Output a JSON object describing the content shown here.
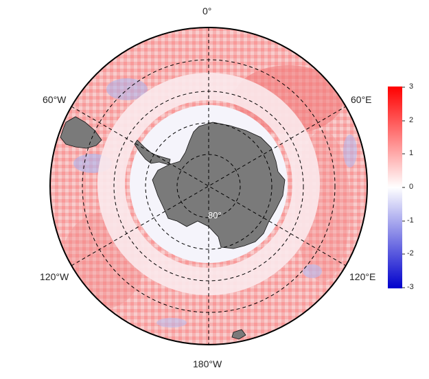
{
  "map": {
    "projection": "south-polar-stereographic",
    "land_color": "#7a7a7a",
    "graticule_style": "dashed",
    "longitude_labels": [
      "0°",
      "60°E",
      "120°E",
      "180°W",
      "120°W",
      "60°W"
    ],
    "latitude_label": "80°",
    "fill_region": "Southern Ocean anomaly field"
  },
  "colorbar": {
    "min": -3,
    "max": 3,
    "ticks": [
      "3",
      "2",
      "1",
      "0",
      "-1",
      "-2",
      "-3"
    ],
    "colors": {
      "low": "#0000cc",
      "mid": "#ffffff",
      "high": "#ff0000"
    }
  }
}
